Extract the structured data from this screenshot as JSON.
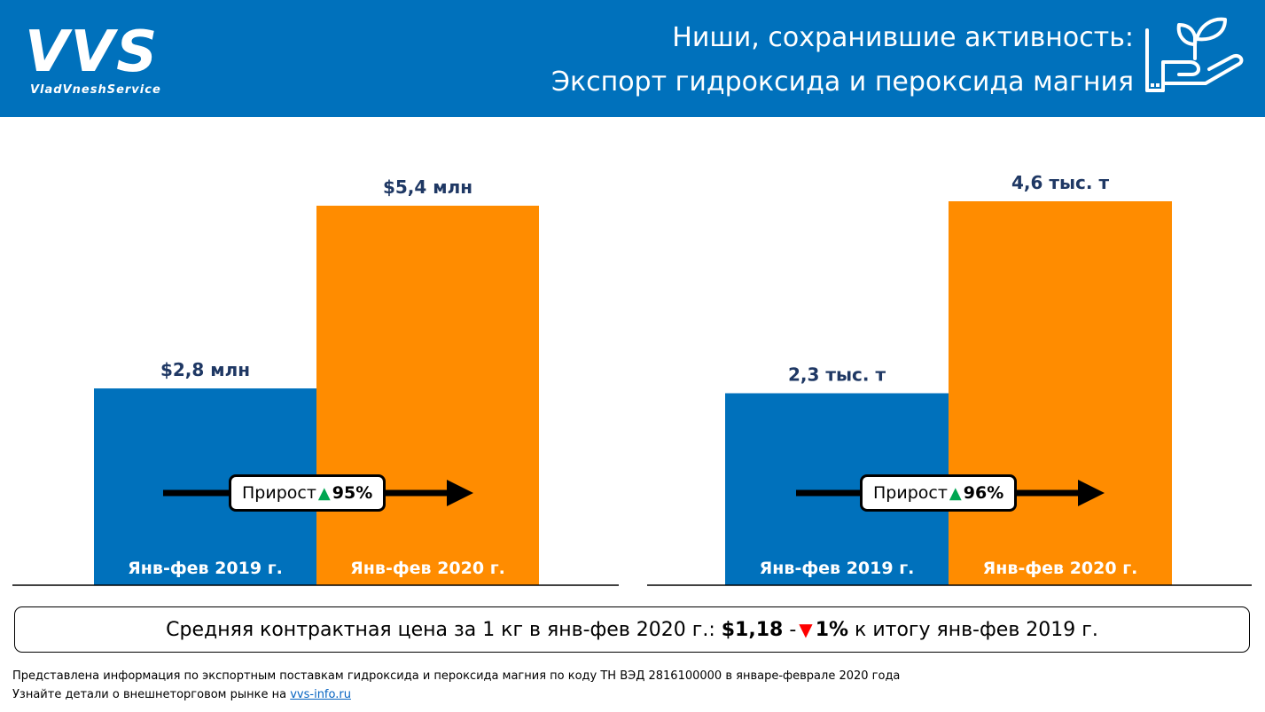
{
  "header": {
    "logo_text": "VVS",
    "logo_sub": "VladVneshService",
    "title_line1": "Ниши, сохранившие активность:",
    "title_line2": "Экспорт гидроксида и пероксида магния",
    "icon": "hand-plant-icon"
  },
  "colors": {
    "header_bg": "#0071bc",
    "bar_2019": "#0071bc",
    "bar_2020": "#ff8c00",
    "value_text": "#1f3864",
    "up": "#00a651",
    "down": "#ff0000"
  },
  "chart_data": [
    {
      "type": "bar",
      "categories": [
        "Янв-фев 2019 г.",
        "Янв-фев 2020 г."
      ],
      "values": [
        2.8,
        5.4
      ],
      "value_labels": [
        "$2,8 млн",
        "$5,4 млн"
      ],
      "ylim": [
        0,
        5.4
      ],
      "growth": {
        "label": "Прирост",
        "value": "95%",
        "direction": "up"
      }
    },
    {
      "type": "bar",
      "categories": [
        "Янв-фев 2019 г.",
        "Янв-фев 2020 г."
      ],
      "values": [
        2.3,
        4.6
      ],
      "value_labels": [
        "2,3 тыс. т",
        "4,6 тыс. т"
      ],
      "ylim": [
        0,
        4.6
      ],
      "growth": {
        "label": "Прирост",
        "value": "96%",
        "direction": "up"
      }
    }
  ],
  "price": {
    "prefix": "Средняя контрактная цена за 1 кг в янв-фев 2020 г.:",
    "value": "$1,18",
    "sep": "-",
    "change": "1%",
    "suffix": "к итогу янв-фев 2019 г."
  },
  "footer": {
    "line1": "Представлена информация по экспортным поставкам гидроксида и пероксида магния по коду ТН ВЭД 2816100000 в январе-феврале 2020 года",
    "line2_prefix": "Узнайте детали о внешнеторговом рынке на",
    "link": "vvs-info.ru"
  }
}
